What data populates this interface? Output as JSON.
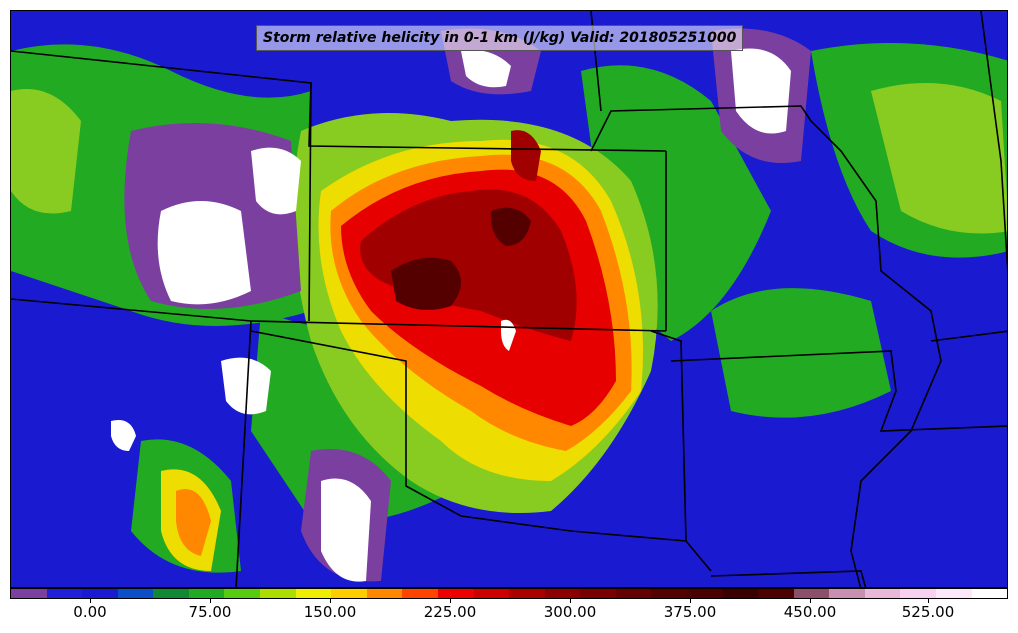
{
  "title": "Storm relative helicity in 0-1 km (J/kg) Valid: 201805251000",
  "colorbar": {
    "colors": [
      "#7b3fa0",
      "#2020d8",
      "#1a1ad0",
      "#0a4fc8",
      "#118833",
      "#22aa22",
      "#55cc11",
      "#aadd00",
      "#eeee00",
      "#ffcc00",
      "#ff8800",
      "#ff4400",
      "#ee0000",
      "#cc0000",
      "#aa0000",
      "#8b0000",
      "#770000",
      "#660000",
      "#550000",
      "#4a0000",
      "#3a0000",
      "#4d0000",
      "#8b4f6a",
      "#c890b0",
      "#e8b8d8",
      "#f8d0f0",
      "#fde8fa",
      "#ffffff"
    ],
    "tick_labels": [
      "0.00",
      "75.00",
      "150.00",
      "225.00",
      "300.00",
      "375.00",
      "450.00",
      "525.00"
    ]
  },
  "field_colors": {
    "low": "#1a1ad0",
    "neg": "#7b3fa0",
    "green": "#22aa22",
    "light_green": "#77cc22",
    "yellow": "#eedd00",
    "orange": "#ff8800",
    "red": "#e60000",
    "dark_red": "#990000",
    "darkest": "#550000",
    "white": "#ffffff",
    "boundary": "#000000"
  }
}
